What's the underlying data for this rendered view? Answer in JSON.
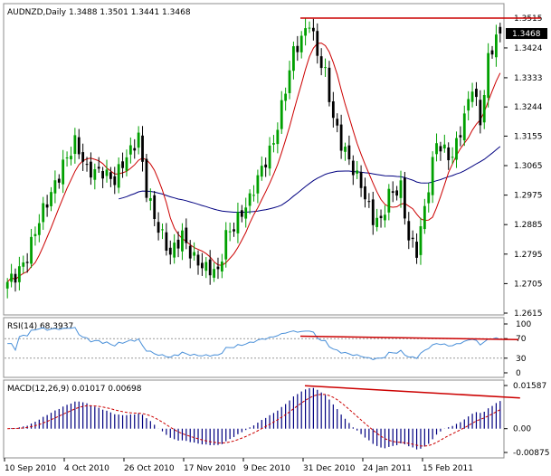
{
  "chart_data": [
    {
      "type": "candlestick",
      "title": "AUDNZD,Daily  1.3488 1.3501 1.3441 1.3468",
      "symbol": "AUDNZD",
      "timeframe": "Daily",
      "ohlc_header": {
        "open": 1.3488,
        "high": 1.3501,
        "low": 1.3441,
        "close": 1.3468
      },
      "last_price_label": "1.3468",
      "ylim": [
        1.2615,
        1.3515
      ],
      "y_ticks": [
        "1.3515",
        "1.3424",
        "1.3333",
        "1.3244",
        "1.3155",
        "1.3065",
        "1.2975",
        "1.2885",
        "1.2795",
        "1.2705",
        "1.2615"
      ],
      "x_ticks": [
        "10 Sep 2010",
        "4 Oct 2010",
        "26 Oct 2010",
        "17 Nov 2010",
        "9 Dec 2010",
        "31 Dec 2010",
        "24 Jan 2011",
        "15 Feb 2011"
      ],
      "close_anchors": [
        [
          0,
          1.271
        ],
        [
          5,
          1.279
        ],
        [
          10,
          1.295
        ],
        [
          14,
          1.308
        ],
        [
          17,
          1.313
        ],
        [
          20,
          1.304
        ],
        [
          24,
          1.306
        ],
        [
          27,
          1.302
        ],
        [
          31,
          1.31
        ],
        [
          33,
          1.316
        ],
        [
          35,
          1.3
        ],
        [
          38,
          1.287
        ],
        [
          41,
          1.278
        ],
        [
          44,
          1.286
        ],
        [
          47,
          1.279
        ],
        [
          50,
          1.274
        ],
        [
          53,
          1.273
        ],
        [
          55,
          1.286
        ],
        [
          58,
          1.291
        ],
        [
          61,
          1.295
        ],
        [
          64,
          1.305
        ],
        [
          67,
          1.315
        ],
        [
          70,
          1.33
        ],
        [
          72,
          1.34
        ],
        [
          74,
          1.344
        ],
        [
          76,
          1.351
        ],
        [
          78,
          1.342
        ],
        [
          80,
          1.335
        ],
        [
          82,
          1.32
        ],
        [
          84,
          1.312
        ],
        [
          86,
          1.308
        ],
        [
          89,
          1.302
        ],
        [
          92,
          1.29
        ],
        [
          94,
          1.288
        ],
        [
          96,
          1.297
        ],
        [
          99,
          1.301
        ],
        [
          101,
          1.285
        ],
        [
          103,
          1.28
        ],
        [
          105,
          1.292
        ],
        [
          108,
          1.314
        ],
        [
          110,
          1.312
        ],
        [
          112,
          1.31
        ],
        [
          115,
          1.32
        ],
        [
          117,
          1.33
        ],
        [
          119,
          1.32
        ],
        [
          121,
          1.34
        ],
        [
          123,
          1.3468
        ]
      ],
      "overlays": [
        {
          "name": "Moving average (fast)",
          "color": "#cc0000"
        },
        {
          "name": "Moving average (slow)",
          "color": "#000080"
        }
      ],
      "annotations": [
        {
          "type": "horizontal_resistance",
          "price": 1.3515,
          "color": "#cc0000"
        }
      ],
      "colors": {
        "bull": "#00a000",
        "bear": "#000000"
      }
    },
    {
      "type": "line",
      "title": "RSI(14) 68.3937",
      "indicator": "RSI(14)",
      "value": 68.3937,
      "ylim": [
        0,
        100
      ],
      "y_ticks": [
        "100",
        "70",
        "30",
        "0"
      ],
      "levels": [
        70,
        30
      ],
      "line_color": "#4a90d9",
      "trendline": {
        "from_value": 75,
        "to_value": 68,
        "color": "#cc0000"
      }
    },
    {
      "type": "bar",
      "title": "MACD(12,26,9) 0.01017 0.00698",
      "indicator": "MACD(12,26,9)",
      "macd_value": 0.01017,
      "signal_value": 0.00698,
      "ylim": [
        -0.00875,
        0.01587
      ],
      "y_ticks": [
        "0.01587",
        "0.00",
        "-0.00875"
      ],
      "histogram_color": "#000080",
      "signal_color": "#cc0000",
      "trendline": {
        "from_value": 0.0158,
        "to_value": 0.0113,
        "color": "#cc0000"
      }
    }
  ]
}
